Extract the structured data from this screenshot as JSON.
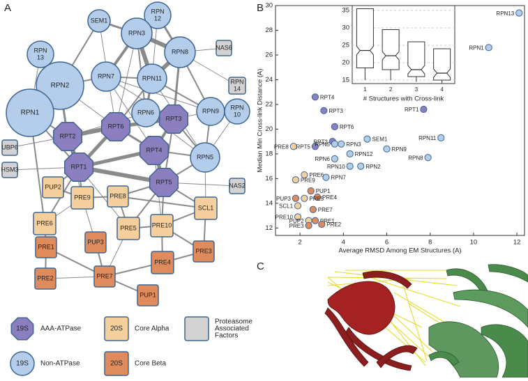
{
  "panels": [
    "A",
    "B",
    "C"
  ],
  "network": {
    "nodes": [
      {
        "lines": [
          "SEM1"
        ],
        "shape": "circle",
        "color": "#b3cdea"
      },
      {
        "lines": [
          "RPN",
          "12"
        ],
        "shape": "circle",
        "color": "#b3cdea"
      },
      {
        "lines": [
          "RPN3"
        ],
        "shape": "circle",
        "color": "#b3cdea"
      },
      {
        "lines": [
          "RPN",
          "13"
        ],
        "shape": "circle",
        "color": "#b3cdea"
      },
      {
        "lines": [
          "RPN8"
        ],
        "shape": "circle",
        "color": "#b3cdea"
      },
      {
        "lines": [
          "NAS6"
        ],
        "shape": "square",
        "color": "#d3d3d3"
      },
      {
        "lines": [
          "RPN",
          "14"
        ],
        "shape": "square",
        "color": "#d3d3d3"
      },
      {
        "lines": [
          "RPN2"
        ],
        "shape": "circle",
        "color": "#b3cdea"
      },
      {
        "lines": [
          "RPN7"
        ],
        "shape": "circle",
        "color": "#b3cdea"
      },
      {
        "lines": [
          "RPN11"
        ],
        "shape": "circle",
        "color": "#b3cdea"
      },
      {
        "lines": [
          "RPN1"
        ],
        "shape": "circle",
        "color": "#b3cdea"
      },
      {
        "lines": [
          "RPN6"
        ],
        "shape": "circle",
        "color": "#b3cdea"
      },
      {
        "lines": [
          "RPN9"
        ],
        "shape": "circle",
        "color": "#b3cdea"
      },
      {
        "lines": [
          "RPN",
          "10"
        ],
        "shape": "circle",
        "color": "#b3cdea"
      },
      {
        "lines": [
          "RPT2"
        ],
        "shape": "octagon",
        "color": "#8c7fc0"
      },
      {
        "lines": [
          "RPT6"
        ],
        "shape": "octagon",
        "color": "#8c7fc0"
      },
      {
        "lines": [
          "RPT3"
        ],
        "shape": "octagon",
        "color": "#8c7fc0"
      },
      {
        "lines": [
          "RPT4"
        ],
        "shape": "octagon",
        "color": "#8c7fc0"
      },
      {
        "lines": [
          "UBP6"
        ],
        "shape": "square",
        "color": "#d3d3d3"
      },
      {
        "lines": [
          "RPN5"
        ],
        "shape": "circle",
        "color": "#b3cdea"
      },
      {
        "lines": [
          "RPT1"
        ],
        "shape": "octagon",
        "color": "#8c7fc0"
      },
      {
        "lines": [
          "HSM3"
        ],
        "shape": "square",
        "color": "#d3d3d3"
      },
      {
        "lines": [
          "RPT5"
        ],
        "shape": "octagon",
        "color": "#8c7fc0"
      },
      {
        "lines": [
          "NAS2"
        ],
        "shape": "square",
        "color": "#d3d3d3"
      },
      {
        "lines": [
          "PUP2"
        ],
        "shape": "square",
        "color": "#f6d09c"
      },
      {
        "lines": [
          "PRE9"
        ],
        "shape": "square",
        "color": "#f6d09c"
      },
      {
        "lines": [
          "PRE8"
        ],
        "shape": "square",
        "color": "#f6d09c"
      },
      {
        "lines": [
          "SCL1"
        ],
        "shape": "square",
        "color": "#f6d09c"
      },
      {
        "lines": [
          "PRE6"
        ],
        "shape": "square",
        "color": "#f6d09c"
      },
      {
        "lines": [
          "PRE5"
        ],
        "shape": "square",
        "color": "#f6d09c"
      },
      {
        "lines": [
          "PRE10"
        ],
        "shape": "square",
        "color": "#f6d09c"
      },
      {
        "lines": [
          "PRE1"
        ],
        "shape": "square",
        "color": "#e08b5c"
      },
      {
        "lines": [
          "PUP3"
        ],
        "shape": "square",
        "color": "#e08b5c"
      },
      {
        "lines": [
          "PRE3"
        ],
        "shape": "square",
        "color": "#e08b5c"
      },
      {
        "lines": [
          "PRE4"
        ],
        "shape": "square",
        "color": "#e08b5c"
      },
      {
        "lines": [
          "PRE2"
        ],
        "shape": "square",
        "color": "#e08b5c"
      },
      {
        "lines": [
          "PRE7"
        ],
        "shape": "square",
        "color": "#e08b5c"
      },
      {
        "lines": [
          "PUP1"
        ],
        "shape": "square",
        "color": "#e08b5c"
      }
    ],
    "legend": [
      {
        "badge": "19S",
        "shape": "octagon",
        "color": "#8c7fc0",
        "lines": [
          "AAA-ATPase"
        ]
      },
      {
        "badge": "20S",
        "shape": "square",
        "color": "#f6d09c",
        "lines": [
          "Core Alpha"
        ]
      },
      {
        "badge": null,
        "shape": "square",
        "color": "#d3d3d3",
        "lines": [
          "Proteasome",
          "Associated",
          "Factors"
        ]
      },
      {
        "badge": "19S",
        "shape": "circle",
        "color": "#b3cdea",
        "lines": [
          "Non-ATPase"
        ]
      },
      {
        "badge": "20S",
        "shape": "square",
        "color": "#e08b5c",
        "lines": [
          "Core Beta"
        ]
      }
    ]
  },
  "chart_data": [
    {
      "type": "scatter",
      "x_label": "Average RMSD Among EM Structures (A)",
      "y_label": "Median Min Cross-link Distance (A)",
      "xlim": [
        0.87,
        12.35
      ],
      "ylim": [
        11.4,
        30
      ],
      "xticks": [
        2,
        4,
        6,
        8,
        10,
        12
      ],
      "yticks": [
        12,
        14,
        16,
        18,
        20,
        22,
        24,
        26,
        28,
        30
      ],
      "points": [
        {
          "label": "RPN13",
          "x": 12.1,
          "y": 29.4,
          "color": "#b3cdea"
        },
        {
          "label": "RPN1",
          "x": 10.7,
          "y": 26.6,
          "color": "#b3cdea"
        },
        {
          "label": "RPT4",
          "x": 2.7,
          "y": 22.6,
          "color": "#8c7fc0"
        },
        {
          "label": "RPT3",
          "x": 3.1,
          "y": 21.5,
          "color": "#8c7fc0"
        },
        {
          "label": "RPT1",
          "x": 7.7,
          "y": 21.6,
          "color": "#8c7fc0"
        },
        {
          "label": "RPT6",
          "x": 3.6,
          "y": 20.2,
          "color": "#8c7fc0"
        },
        {
          "label": "RPN11",
          "x": 8.5,
          "y": 19.3,
          "color": "#b3cdea"
        },
        {
          "label": "RPT2",
          "x": 3.5,
          "y": 19.0,
          "color": "#8c7fc0"
        },
        {
          "label": "RPT5",
          "x": 2.7,
          "y": 18.6,
          "color": "#8c7fc0"
        },
        {
          "label": "SEM1",
          "x": 5.1,
          "y": 19.2,
          "color": "#b3cdea"
        },
        {
          "label": "RPN3",
          "x": 3.9,
          "y": 18.8,
          "color": "#b3cdea"
        },
        {
          "label": "RPN5",
          "x": 3.6,
          "y": 18.8,
          "color": "#b3cdea"
        },
        {
          "label": "RPN9",
          "x": 6.0,
          "y": 18.4,
          "color": "#b3cdea"
        },
        {
          "label": "RPN12",
          "x": 4.3,
          "y": 18.0,
          "color": "#b3cdea"
        },
        {
          "label": "PRE8",
          "x": 1.7,
          "y": 18.6,
          "color": "#f6d09c"
        },
        {
          "label": "RPN6",
          "x": 3.6,
          "y": 17.6,
          "color": "#b3cdea"
        },
        {
          "label": "RPN8",
          "x": 7.9,
          "y": 17.7,
          "color": "#b3cdea"
        },
        {
          "label": "RPN10",
          "x": 4.3,
          "y": 17.0,
          "color": "#b3cdea"
        },
        {
          "label": "RPN2",
          "x": 4.8,
          "y": 17.0,
          "color": "#b3cdea"
        },
        {
          "label": "PRE6",
          "x": 2.2,
          "y": 16.3,
          "color": "#f6d09c"
        },
        {
          "label": "RPN7",
          "x": 3.2,
          "y": 16.1,
          "color": "#b3cdea"
        },
        {
          "label": "PRE9",
          "x": 1.8,
          "y": 15.9,
          "color": "#f6d09c"
        },
        {
          "label": "PUP1",
          "x": 2.5,
          "y": 15.0,
          "color": "#e08b5c"
        },
        {
          "label": "PUP3",
          "x": 1.8,
          "y": 14.4,
          "color": "#e08b5c"
        },
        {
          "label": "PRE4",
          "x": 2.8,
          "y": 14.5,
          "color": "#e08b5c"
        },
        {
          "label": "SCL1",
          "x": 1.9,
          "y": 13.8,
          "color": "#f6d09c"
        },
        {
          "label": "PRE5",
          "x": 2.2,
          "y": 14.4,
          "color": "#f6d09c"
        },
        {
          "label": "PRE7",
          "x": 2.6,
          "y": 13.5,
          "color": "#e08b5c"
        },
        {
          "label": "PRE10",
          "x": 1.9,
          "y": 12.9,
          "color": "#f6d09c"
        },
        {
          "label": "PUP2",
          "x": 2.4,
          "y": 12.6,
          "color": "#f6d09c"
        },
        {
          "label": "PRE1",
          "x": 2.7,
          "y": 12.6,
          "color": "#e08b5c"
        },
        {
          "label": "PRE3",
          "x": 2.4,
          "y": 12.2,
          "color": "#e08b5c"
        },
        {
          "label": "PRE2",
          "x": 3.0,
          "y": 12.3,
          "color": "#e08b5c"
        }
      ]
    },
    {
      "type": "box",
      "x_label": "# Structures with Cross-link",
      "categories": [
        "1",
        "2",
        "3",
        "4"
      ],
      "ylim": [
        14,
        36.4
      ],
      "yticks": [
        15,
        20,
        25,
        30,
        35
      ],
      "grid": true,
      "min": [
        15,
        15,
        14.5,
        14
      ],
      "q1": [
        18.5,
        18,
        16,
        15
      ],
      "median": [
        23.5,
        22,
        18,
        17
      ],
      "q3": [
        35.5,
        29.5,
        26,
        24
      ],
      "max": [
        35.5,
        29.5,
        26,
        24
      ]
    }
  ]
}
